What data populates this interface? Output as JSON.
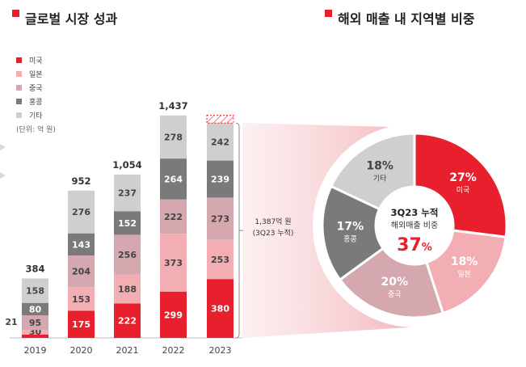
{
  "left_title": "글로벌 시장 성과",
  "right_title": "해외 매출 내 지역별 비중",
  "legend": {
    "items": [
      {
        "label": "미국",
        "color": "#e8202e"
      },
      {
        "label": "일본",
        "color": "#f2aeb3"
      },
      {
        "label": "중국",
        "color": "#d5a7ae"
      },
      {
        "label": "홍콩",
        "color": "#7a7a7a"
      },
      {
        "label": "기타",
        "color": "#cfcfcf"
      }
    ],
    "unit": "(단위: 억 원)"
  },
  "chart_data": [
    {
      "type": "bar",
      "stacked": true,
      "title": "글로벌 시장 성과",
      "unit": "억 원",
      "categories": [
        "2019",
        "2020",
        "2021",
        "2022",
        "2023"
      ],
      "series": [
        {
          "name": "미국",
          "values": [
            21,
            175,
            222,
            299,
            380
          ]
        },
        {
          "name": "일본",
          "values": [
            30,
            153,
            188,
            373,
            253
          ]
        },
        {
          "name": "중국",
          "values": [
            95,
            204,
            256,
            222,
            273
          ]
        },
        {
          "name": "홍콩",
          "values": [
            80,
            143,
            152,
            264,
            239
          ]
        },
        {
          "name": "기타",
          "values": [
            158,
            276,
            237,
            278,
            242
          ]
        }
      ],
      "totals": [
        "384",
        "952",
        "1,054",
        "1,437",
        ""
      ],
      "forecast_total_2023": 1437,
      "bracket_label": [
        "1,387억 원",
        "(3Q23 누적)"
      ]
    },
    {
      "type": "pie",
      "title": "해외 매출 내 지역별 비중",
      "center_title": "3Q23 누적",
      "center_subtitle": "해외매출 비중",
      "center_value": "37",
      "center_unit": "%",
      "slices": [
        {
          "label": "미국",
          "value": 27,
          "display": "27%",
          "color": "#e8202e"
        },
        {
          "label": "일본",
          "value": 18,
          "display": "18%",
          "color": "#f2aeb3"
        },
        {
          "label": "중국",
          "value": 20,
          "display": "20%",
          "color": "#d5a7ae"
        },
        {
          "label": "홍콩",
          "value": 17,
          "display": "17%",
          "color": "#7a7a7a"
        },
        {
          "label": "기타",
          "value": 18,
          "display": "18%",
          "color": "#cfcfcf"
        }
      ]
    }
  ]
}
